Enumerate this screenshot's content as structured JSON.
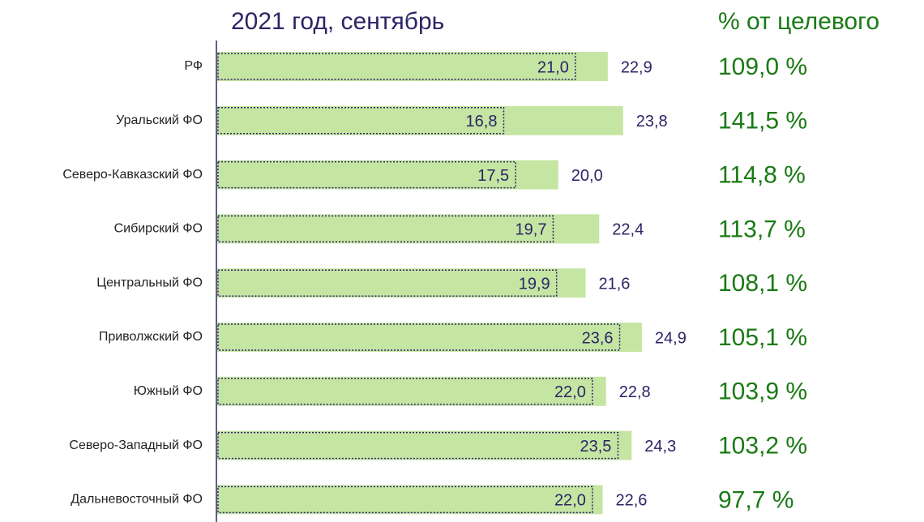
{
  "chart_data": {
    "type": "bar_target",
    "title": "2021 год, сентябрь",
    "side_title": "% от целевого",
    "categories": [
      "РФ",
      "Уральский ФО",
      "Северо-Кавказский ФО",
      "Сибирский ФО",
      "Центральный ФО",
      "Приволжский ФО",
      "Южный ФО",
      "Северо-Западный ФО",
      "Дальневосточный ФО"
    ],
    "series": [
      {
        "color": "#c5e5a2",
        "values": [
          22.9,
          23.8,
          20.0,
          22.4,
          21.6,
          24.9,
          22.8,
          24.3,
          22.6
        ],
        "value_labels": [
          "22,9",
          "23,8",
          "20,0",
          "22,4",
          "21,6",
          "24,9",
          "22,8",
          "24,3",
          "22,6"
        ]
      },
      {
        "color": "#2b2566",
        "values": [
          21.0,
          16.8,
          17.5,
          19.7,
          19.9,
          23.6,
          22.0,
          23.5,
          22.0
        ],
        "value_labels": [
          "21,0",
          "16,8",
          "17,5",
          "19,7",
          "19,9",
          "23,6",
          "22,0",
          "23,5",
          "22,0"
        ]
      }
    ],
    "percent": {
      "color": "#1a7a14",
      "values": [
        109.0,
        141.5,
        114.8,
        113.7,
        108.1,
        105.1,
        103.9,
        103.2,
        97.7
      ],
      "value_labels": [
        "109,0 %",
        "141,5 %",
        "114,8 %",
        "113,7 %",
        "108,1 %",
        "105,1 %",
        "103,9 %",
        "103,2 %",
        "97,7 %"
      ]
    },
    "xlim": [
      0,
      25
    ]
  }
}
